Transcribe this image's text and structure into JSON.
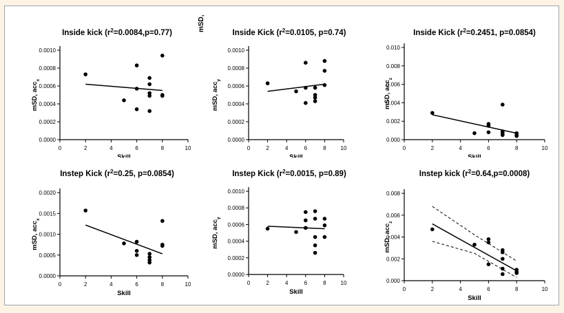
{
  "chart_data": [
    {
      "type": "scatter",
      "title_parts": [
        "Inside kick (r",
        "2",
        "=0.0084,p=0.77)"
      ],
      "xlabel": "Skill",
      "ylabel_parts": [
        "mSD, acc",
        "x"
      ],
      "xlim": [
        0,
        10
      ],
      "xticks": [
        0,
        2,
        4,
        6,
        8,
        10
      ],
      "ylim": [
        0,
        0.001
      ],
      "yticks": [
        "0.0000",
        "0.0002",
        "0.0004",
        "0.0006",
        "0.0008",
        "0.0010"
      ],
      "points": [
        [
          2,
          0.00073
        ],
        [
          5,
          0.00044
        ],
        [
          6,
          0.00083
        ],
        [
          6,
          0.00057
        ],
        [
          6,
          0.00034
        ],
        [
          7,
          0.00069
        ],
        [
          7,
          0.00062
        ],
        [
          7,
          0.00052
        ],
        [
          7,
          0.00049
        ],
        [
          7,
          0.00032
        ],
        [
          8,
          0.00094
        ],
        [
          8,
          0.0005
        ],
        [
          8,
          0.00049
        ]
      ],
      "fit": [
        [
          2,
          0.00062
        ],
        [
          8,
          0.00055
        ]
      ]
    },
    {
      "type": "scatter",
      "title_parts": [
        "Inside Kick (r",
        "2",
        "=0.0105, p=0.74)"
      ],
      "xlabel": "Skill",
      "ylabel_parts": [
        "mSD, acc",
        "y"
      ],
      "xlim": [
        0,
        10
      ],
      "xticks": [
        0,
        2,
        4,
        6,
        8,
        10
      ],
      "ylim": [
        0,
        0.001
      ],
      "yticks": [
        "0.0000",
        "0.0002",
        "0.0004",
        "0.0006",
        "0.0008",
        "0.0010"
      ],
      "points": [
        [
          2,
          0.00063
        ],
        [
          5,
          0.00054
        ],
        [
          6,
          0.00086
        ],
        [
          6,
          0.00058
        ],
        [
          6,
          0.00041
        ],
        [
          7,
          0.00058
        ],
        [
          7,
          0.0005
        ],
        [
          7,
          0.00047
        ],
        [
          7,
          0.00043
        ],
        [
          8,
          0.00088
        ],
        [
          8,
          0.00077
        ],
        [
          8,
          0.00061
        ]
      ],
      "fit": [
        [
          2,
          0.00054
        ],
        [
          8,
          0.00062
        ]
      ]
    },
    {
      "type": "scatter",
      "title_parts": [
        "Inside Kick (r",
        "2",
        "=0.2451, p=0.0854)"
      ],
      "xlabel": "Skill",
      "ylabel_parts": [
        "mSD, acc",
        "z"
      ],
      "xlim": [
        0,
        10
      ],
      "xticks": [
        0,
        2,
        4,
        6,
        8,
        10
      ],
      "ylim": [
        0,
        0.01
      ],
      "yticks": [
        "0.000",
        "0.002",
        "0.004",
        "0.006",
        "0.008",
        "0.010"
      ],
      "points": [
        [
          2,
          0.0029
        ],
        [
          5,
          0.0007
        ],
        [
          6,
          0.0017
        ],
        [
          6,
          0.0015
        ],
        [
          6,
          0.0008
        ],
        [
          7,
          0.0038
        ],
        [
          7,
          0.0009
        ],
        [
          7,
          0.0007
        ],
        [
          7,
          0.0005
        ],
        [
          8,
          0.0007
        ],
        [
          8,
          0.0005
        ],
        [
          8,
          0.0004
        ]
      ],
      "fit": [
        [
          2,
          0.0027
        ],
        [
          8,
          0.0007
        ]
      ]
    },
    {
      "type": "scatter",
      "title_parts": [
        "Instep Kick (r",
        "2",
        "=0.25, p=0.0854)"
      ],
      "xlabel": "Skill",
      "ylabel_parts": [
        "mSD, acc",
        "x"
      ],
      "xlim": [
        0,
        10
      ],
      "xticks": [
        0,
        2,
        4,
        6,
        8,
        10
      ],
      "ylim": [
        0,
        0.002
      ],
      "yticks": [
        "0.0000",
        "0.0005",
        "0.0010",
        "0.0015",
        "0.0020"
      ],
      "points": [
        [
          2,
          0.00157
        ],
        [
          5,
          0.00078
        ],
        [
          6,
          0.00082
        ],
        [
          6,
          0.0006
        ],
        [
          6,
          0.0005
        ],
        [
          7,
          0.00053
        ],
        [
          7,
          0.00045
        ],
        [
          7,
          0.00038
        ],
        [
          7,
          0.00032
        ],
        [
          8,
          0.00132
        ],
        [
          8,
          0.00075
        ],
        [
          8,
          0.00072
        ]
      ],
      "fit": [
        [
          2,
          0.00122
        ],
        [
          8,
          0.00053
        ]
      ]
    },
    {
      "type": "scatter",
      "title_parts": [
        "Instep Kick (r",
        "2",
        "=0.0015, p=0.89)"
      ],
      "xlabel": "Skill",
      "ylabel_parts": [
        "mSD, acc",
        "y"
      ],
      "xlim": [
        0,
        10
      ],
      "xticks": [
        0,
        2,
        4,
        6,
        8,
        10
      ],
      "ylim": [
        0,
        0.001
      ],
      "yticks": [
        "0.0000",
        "0.0002",
        "0.0004",
        "0.0006",
        "0.0008",
        "0.0010"
      ],
      "points": [
        [
          2,
          0.00055
        ],
        [
          5,
          0.00051
        ],
        [
          6,
          0.00075
        ],
        [
          6,
          0.00065
        ],
        [
          6,
          0.00056
        ],
        [
          7,
          0.00076
        ],
        [
          7,
          0.00067
        ],
        [
          7,
          0.00045
        ],
        [
          7,
          0.00035
        ],
        [
          7,
          0.00026
        ],
        [
          8,
          0.00067
        ],
        [
          8,
          0.00059
        ],
        [
          8,
          0.00045
        ]
      ],
      "fit": [
        [
          2,
          0.00058
        ],
        [
          8,
          0.00055
        ]
      ]
    },
    {
      "type": "scatter",
      "title_parts": [
        "Instep kick (r",
        "2",
        "=0.64,p=0.0008)"
      ],
      "xlabel": "Skill",
      "ylabel_parts": [
        "mSD, acc",
        "z"
      ],
      "xlim": [
        0,
        10
      ],
      "xticks": [
        0,
        2,
        4,
        6,
        8,
        10
      ],
      "ylim": [
        0,
        0.008
      ],
      "yticks": [
        "0.000",
        "0.002",
        "0.004",
        "0.006",
        "0.008"
      ],
      "points": [
        [
          2,
          0.0047
        ],
        [
          5,
          0.0033
        ],
        [
          6,
          0.0038
        ],
        [
          6,
          0.0035
        ],
        [
          6,
          0.0015
        ],
        [
          7,
          0.0028
        ],
        [
          7,
          0.0026
        ],
        [
          7,
          0.002
        ],
        [
          7,
          0.0011
        ],
        [
          7,
          0.0006
        ],
        [
          8,
          0.001
        ],
        [
          8,
          0.0008
        ],
        [
          8,
          0.0007
        ]
      ],
      "fit": [
        [
          2,
          0.0052
        ],
        [
          8,
          0.0009
        ]
      ],
      "ci_upper": [
        [
          2,
          0.0068
        ],
        [
          5,
          0.0042
        ],
        [
          8,
          0.0018
        ]
      ],
      "ci_lower": [
        [
          2,
          0.0036
        ],
        [
          5,
          0.0025
        ],
        [
          8,
          0.0003
        ]
      ]
    }
  ],
  "stray_label": "mSD,"
}
